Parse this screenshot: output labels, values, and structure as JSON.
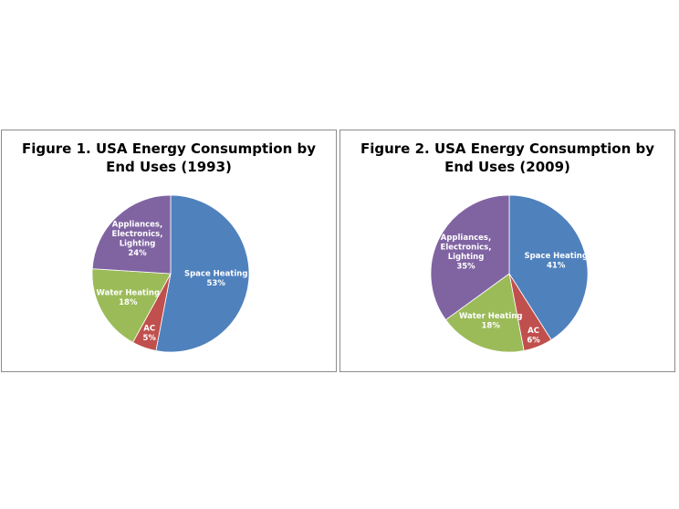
{
  "chart_data": [
    {
      "type": "pie",
      "title_lines": [
        "Figure 1.  USA Energy Consumption by",
        "End Uses (1993)"
      ],
      "slices": [
        {
          "name": "Space Heating",
          "value": 53,
          "label_lines": [
            "Space Heating",
            "53%"
          ],
          "color": "#4f81bd"
        },
        {
          "name": "AC",
          "value": 5,
          "label_lines": [
            "AC",
            "5%"
          ],
          "color": "#c0504d"
        },
        {
          "name": "Water Heating",
          "value": 18,
          "label_lines": [
            "Water Heating",
            "18%"
          ],
          "color": "#9bbb59"
        },
        {
          "name": "Appliances, Electronics, Lighting",
          "value": 24,
          "label_lines": [
            "Appliances,",
            "Electronics,",
            "Lighting",
            "24%"
          ],
          "color": "#8064a2"
        }
      ]
    },
    {
      "type": "pie",
      "title_lines": [
        "Figure 2.  USA Energy Consumption by",
        "End Uses (2009)"
      ],
      "slices": [
        {
          "name": "Space Heating",
          "value": 41,
          "label_lines": [
            "Space Heating",
            "41%"
          ],
          "color": "#4f81bd"
        },
        {
          "name": "AC",
          "value": 6,
          "label_lines": [
            "AC",
            "6%"
          ],
          "color": "#c0504d"
        },
        {
          "name": "Water Heating",
          "value": 18,
          "label_lines": [
            "Water Heating",
            "18%"
          ],
          "color": "#9bbb59"
        },
        {
          "name": "Appliances, Electronics, Lighting",
          "value": 35,
          "label_lines": [
            "Appliances,",
            "Electronics,",
            "Lighting",
            "35%"
          ],
          "color": "#8064a2"
        }
      ]
    }
  ]
}
